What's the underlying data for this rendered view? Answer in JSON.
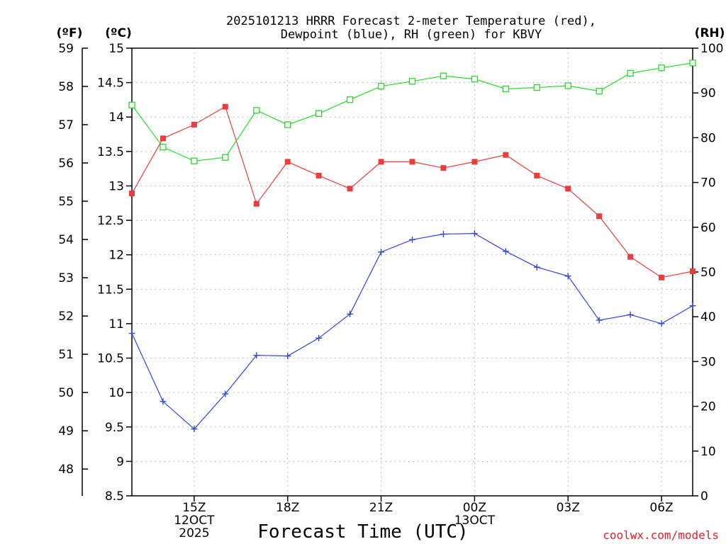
{
  "chart_data": {
    "type": "line",
    "title": [
      "2025101213 HRRR Forecast 2-meter Temperature (red),",
      "Dewpoint (blue), RH (green) for KBVY"
    ],
    "xlabel": "Forecast Time (UTC)",
    "credit": "coolwx.com/models",
    "units": {
      "f": "(ºF)",
      "c": "(ºC)",
      "rh": "(RH)"
    },
    "x_hours": [
      13,
      14,
      15,
      16,
      17,
      18,
      19,
      20,
      21,
      22,
      23,
      24,
      25,
      26,
      27,
      28,
      29,
      30,
      31
    ],
    "x_ticks": [
      {
        "hour": 15,
        "lines": [
          "15Z",
          "12OCT",
          "2025"
        ]
      },
      {
        "hour": 18,
        "lines": [
          "18Z"
        ]
      },
      {
        "hour": 21,
        "lines": [
          "21Z"
        ]
      },
      {
        "hour": 24,
        "lines": [
          "00Z",
          "13OCT"
        ]
      },
      {
        "hour": 27,
        "lines": [
          "03Z"
        ]
      },
      {
        "hour": 30,
        "lines": [
          "06Z"
        ]
      }
    ],
    "c_axis": {
      "range": [
        8.5,
        15
      ],
      "ticks": [
        "8.5",
        "9",
        "9.5",
        "10",
        "10.5",
        "11",
        "11.5",
        "12",
        "12.5",
        "13",
        "13.5",
        "14",
        "14.5",
        "15"
      ]
    },
    "f_axis": {
      "ticks": [
        "48",
        "49",
        "50",
        "51",
        "52",
        "53",
        "54",
        "55",
        "56",
        "57",
        "58",
        "59"
      ]
    },
    "rh_axis": {
      "range": [
        0,
        100
      ],
      "ticks": [
        "0",
        "10",
        "20",
        "30",
        "40",
        "50",
        "60",
        "70",
        "80",
        "90",
        "100"
      ]
    },
    "series": [
      {
        "name": "Temperature",
        "units": "C",
        "color": "#ee3b3b",
        "marker": "filled-square",
        "values": [
          12.89,
          13.69,
          13.89,
          14.15,
          12.74,
          13.35,
          13.15,
          12.96,
          13.35,
          13.35,
          13.26,
          13.35,
          13.45,
          13.15,
          12.96,
          12.56,
          11.97,
          11.67,
          11.76
        ]
      },
      {
        "name": "Dewpoint",
        "units": "C",
        "color": "#2c44e8",
        "marker": "plus",
        "values": [
          10.86,
          9.87,
          9.47,
          9.98,
          10.54,
          10.53,
          10.79,
          11.14,
          12.04,
          12.22,
          12.3,
          12.31,
          12.05,
          11.82,
          11.69,
          11.05,
          11.13,
          11.0,
          11.26
        ]
      },
      {
        "name": "RH",
        "units": "%",
        "color": "#22dd22",
        "marker": "open-square",
        "values": [
          87.3,
          77.9,
          74.8,
          75.6,
          86.1,
          82.9,
          85.4,
          88.5,
          91.5,
          92.6,
          93.8,
          93.1,
          90.9,
          91.2,
          91.6,
          90.4,
          94.4,
          95.6,
          96.7
        ]
      }
    ]
  }
}
